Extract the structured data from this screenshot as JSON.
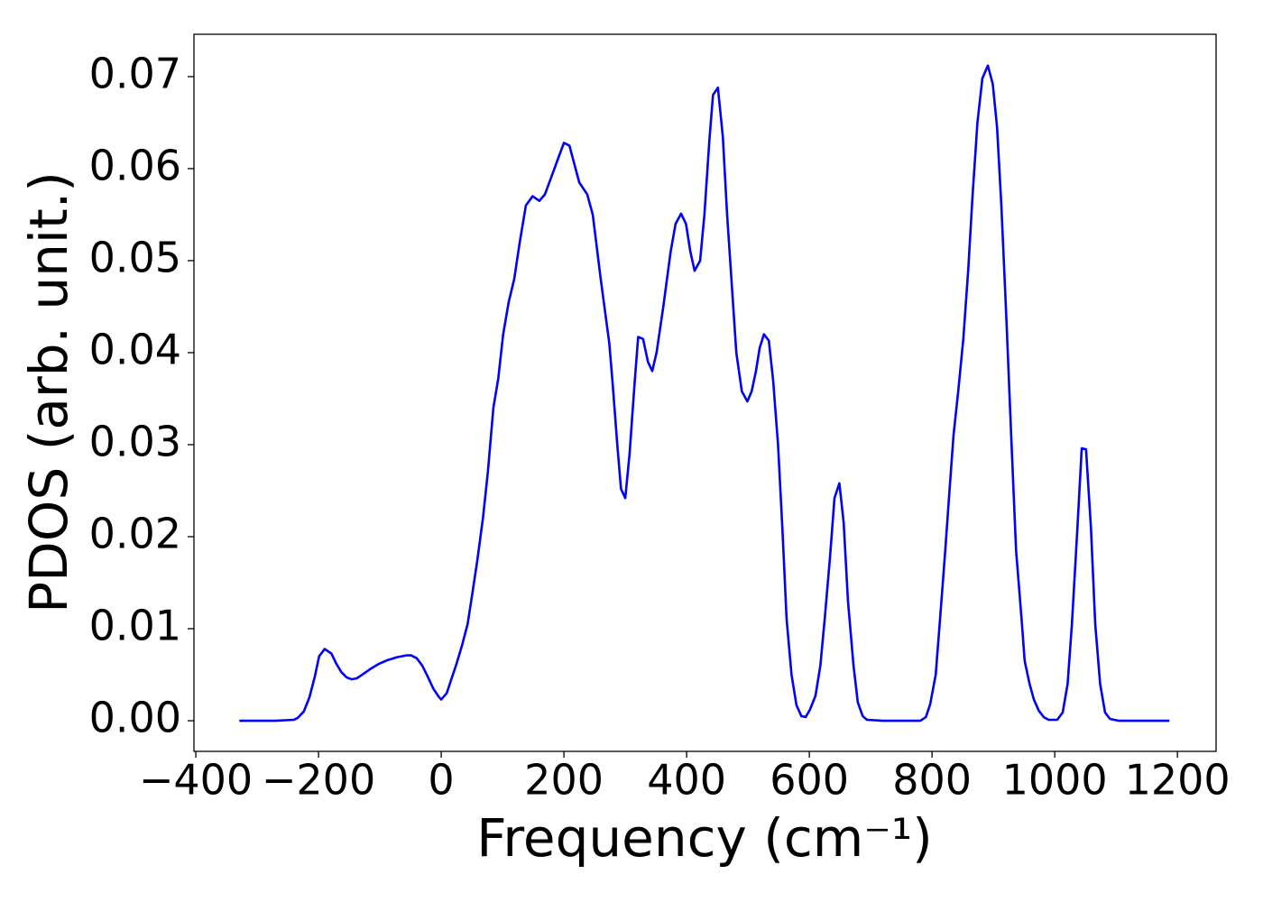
{
  "chart_data": {
    "type": "line",
    "xlabel": "Frequency (cm⁻¹)",
    "ylabel": "PDOS (arb. unit.)",
    "xlim": [
      -403,
      1263
    ],
    "ylim": [
      -0.00333,
      0.0746
    ],
    "xticks": [
      {
        "value": -400,
        "label": "−400"
      },
      {
        "value": -200,
        "label": "−200"
      },
      0,
      200,
      400,
      600,
      800,
      1000,
      1200
    ],
    "yticks": [
      {
        "value": 0,
        "label": "0.00"
      },
      0.01,
      0.02,
      0.03,
      0.04,
      0.05,
      0.06,
      0.07
    ],
    "grid": false,
    "series": [
      {
        "color": "#0000ff",
        "x": [
          -329,
          -270,
          -240,
          -234,
          -224,
          -215,
          -206,
          -199,
          -190,
          -179,
          -171,
          -163,
          -154,
          -146,
          -138,
          -131,
          -116,
          -101,
          -87,
          -72,
          -57,
          -49,
          -40,
          -31,
          -22,
          -13,
          -4,
          0,
          9,
          16,
          25,
          34,
          43,
          50,
          59,
          68,
          76,
          85,
          93,
          101,
          110,
          119,
          128,
          138,
          149,
          160,
          169,
          179,
          190,
          200,
          209,
          225,
          238,
          247,
          260,
          274,
          279,
          287,
          293,
          300,
          307,
          315,
          321,
          329,
          337,
          344,
          351,
          362,
          374,
          382,
          391,
          399,
          406,
          413,
          422,
          429,
          437,
          443,
          451,
          459,
          466,
          474,
          481,
          490,
          499,
          506,
          513,
          519,
          526,
          534,
          541,
          549,
          556,
          563,
          571,
          579,
          587,
          594,
          601,
          610,
          618,
          625,
          634,
          641,
          649,
          656,
          663,
          672,
          679,
          687,
          694,
          720,
          781,
          790,
          797,
          806,
          813,
          821,
          829,
          835,
          843,
          851,
          859,
          866,
          874,
          882,
          891,
          899,
          906,
          913,
          921,
          929,
          937,
          946,
          951,
          959,
          966,
          974,
          982,
          990,
          1004,
          1013,
          1021,
          1028,
          1037,
          1044,
          1051,
          1059,
          1066,
          1074,
          1082,
          1090,
          1104,
          1150,
          1187
        ],
        "values": [
          0,
          0,
          0.0001,
          0.0003,
          0.001,
          0.0025,
          0.0048,
          0.007,
          0.0078,
          0.0073,
          0.0062,
          0.0053,
          0.0047,
          0.0045,
          0.0046,
          0.0049,
          0.0056,
          0.0062,
          0.0066,
          0.0069,
          0.0071,
          0.0071,
          0.0068,
          0.006,
          0.0048,
          0.0035,
          0.0026,
          0.0023,
          0.003,
          0.0044,
          0.0062,
          0.0082,
          0.0105,
          0.0135,
          0.0175,
          0.022,
          0.027,
          0.034,
          0.0372,
          0.042,
          0.0455,
          0.048,
          0.052,
          0.056,
          0.057,
          0.0565,
          0.0572,
          0.059,
          0.061,
          0.0628,
          0.0625,
          0.0585,
          0.0572,
          0.055,
          0.048,
          0.041,
          0.037,
          0.03,
          0.0252,
          0.0242,
          0.029,
          0.0365,
          0.0417,
          0.0415,
          0.039,
          0.038,
          0.04,
          0.045,
          0.051,
          0.054,
          0.0551,
          0.054,
          0.051,
          0.0489,
          0.05,
          0.055,
          0.063,
          0.068,
          0.0688,
          0.0635,
          0.055,
          0.047,
          0.04,
          0.0358,
          0.0347,
          0.0358,
          0.038,
          0.0405,
          0.042,
          0.0413,
          0.037,
          0.03,
          0.021,
          0.011,
          0.005,
          0.0017,
          0.0005,
          0.0004,
          0.0012,
          0.0027,
          0.006,
          0.011,
          0.018,
          0.0242,
          0.0258,
          0.0215,
          0.013,
          0.006,
          0.002,
          0.0005,
          0.0001,
          0,
          0,
          0.0004,
          0.0018,
          0.005,
          0.011,
          0.018,
          0.0255,
          0.031,
          0.036,
          0.0415,
          0.049,
          0.057,
          0.065,
          0.0698,
          0.0712,
          0.0692,
          0.0645,
          0.056,
          0.044,
          0.031,
          0.0185,
          0.011,
          0.0065,
          0.004,
          0.0023,
          0.0011,
          0.0004,
          0.0001,
          0.0001,
          0.0009,
          0.004,
          0.0105,
          0.021,
          0.0296,
          0.0295,
          0.021,
          0.0105,
          0.004,
          0.0009,
          0.0002,
          0,
          0,
          0
        ]
      }
    ]
  }
}
